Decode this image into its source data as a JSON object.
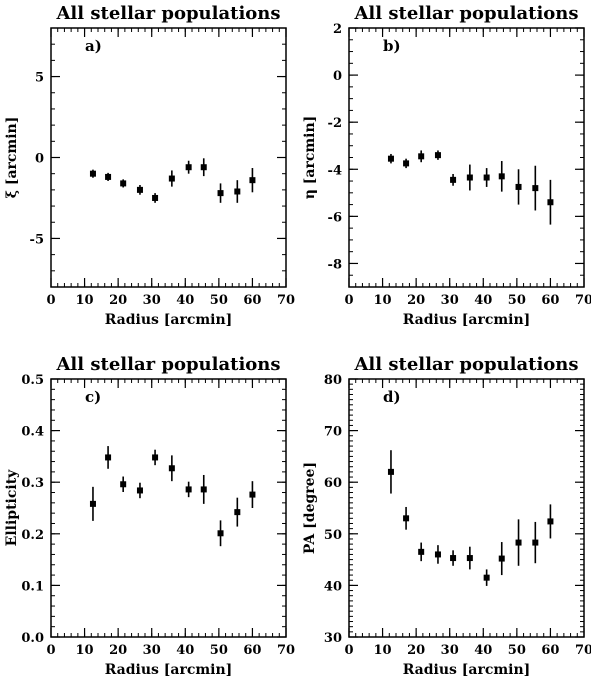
{
  "chart_data": [
    {
      "type": "scatter",
      "title": "All stellar populations",
      "panel_label": "a)",
      "xlabel": "Radius [arcmin]",
      "ylabel": "ξ [arcmin]",
      "xlim": [
        0,
        70
      ],
      "ylim": [
        -8,
        8
      ],
      "xticks": [
        "0",
        "10",
        "20",
        "30",
        "40",
        "50",
        "60",
        "70"
      ],
      "yticks": [
        "-5",
        "0",
        "5"
      ],
      "x": [
        12.5,
        17,
        21.5,
        26.5,
        31,
        36,
        41,
        45.5,
        50.5,
        55.5,
        60
      ],
      "y": [
        -1.0,
        -1.2,
        -1.6,
        -2.0,
        -2.5,
        -1.3,
        -0.6,
        -0.6,
        -2.2,
        -2.1,
        -1.4
      ],
      "yerr": [
        0.25,
        0.25,
        0.25,
        0.3,
        0.3,
        0.5,
        0.4,
        0.55,
        0.6,
        0.7,
        0.75
      ]
    },
    {
      "type": "scatter",
      "title": "All stellar populations",
      "panel_label": "b)",
      "xlabel": "Radius [arcmin]",
      "ylabel": "η [arcmin]",
      "xlim": [
        0,
        70
      ],
      "ylim": [
        -9,
        2
      ],
      "xticks": [
        "0",
        "10",
        "20",
        "30",
        "40",
        "50",
        "60",
        "70"
      ],
      "yticks": [
        "-8",
        "-6",
        "-4",
        "-2",
        "0",
        "2"
      ],
      "x": [
        12.5,
        17,
        21.5,
        26.5,
        31,
        36,
        41,
        45.5,
        50.5,
        55.5,
        60
      ],
      "y": [
        -3.55,
        -3.75,
        -3.45,
        -3.4,
        -4.45,
        -4.35,
        -4.35,
        -4.3,
        -4.75,
        -4.8,
        -5.4
      ],
      "yerr": [
        0.2,
        0.2,
        0.25,
        0.2,
        0.25,
        0.55,
        0.4,
        0.65,
        0.75,
        0.95,
        0.95
      ]
    },
    {
      "type": "scatter",
      "title": "All stellar populations",
      "panel_label": "c)",
      "xlabel": "Radius [arcmin]",
      "ylabel": "Ellipticity",
      "xlim": [
        0,
        70
      ],
      "ylim": [
        0.0,
        0.5
      ],
      "xticks": [
        "0",
        "10",
        "20",
        "30",
        "40",
        "50",
        "60",
        "70"
      ],
      "yticks": [
        "0.0",
        "0.1",
        "0.2",
        "0.3",
        "0.4",
        "0.5"
      ],
      "x": [
        12.5,
        17,
        21.5,
        26.5,
        31,
        36,
        41,
        45.5,
        50.5,
        55.5,
        60
      ],
      "y": [
        0.258,
        0.348,
        0.296,
        0.284,
        0.348,
        0.327,
        0.286,
        0.286,
        0.201,
        0.242,
        0.276
      ],
      "yerr": [
        0.033,
        0.022,
        0.015,
        0.015,
        0.015,
        0.025,
        0.015,
        0.028,
        0.025,
        0.028,
        0.026
      ]
    },
    {
      "type": "scatter",
      "title": "All stellar populations",
      "panel_label": "d)",
      "xlabel": "Radius [arcmin]",
      "ylabel": "PA [degree]",
      "xlim": [
        0,
        70
      ],
      "ylim": [
        30,
        80
      ],
      "xticks": [
        "0",
        "10",
        "20",
        "30",
        "40",
        "50",
        "60",
        "70"
      ],
      "yticks": [
        "30",
        "40",
        "50",
        "60",
        "70",
        "80"
      ],
      "x": [
        12.5,
        17,
        21.5,
        26.5,
        31,
        36,
        41,
        45.5,
        50.5,
        55.5,
        60
      ],
      "y": [
        62,
        53,
        46.5,
        46,
        45.3,
        45.3,
        41.5,
        45.2,
        48.3,
        48.3,
        52.4
      ],
      "yerr": [
        4.2,
        2.2,
        1.8,
        1.8,
        1.5,
        2.2,
        1.6,
        3.2,
        4.5,
        4.0,
        3.3
      ]
    }
  ]
}
